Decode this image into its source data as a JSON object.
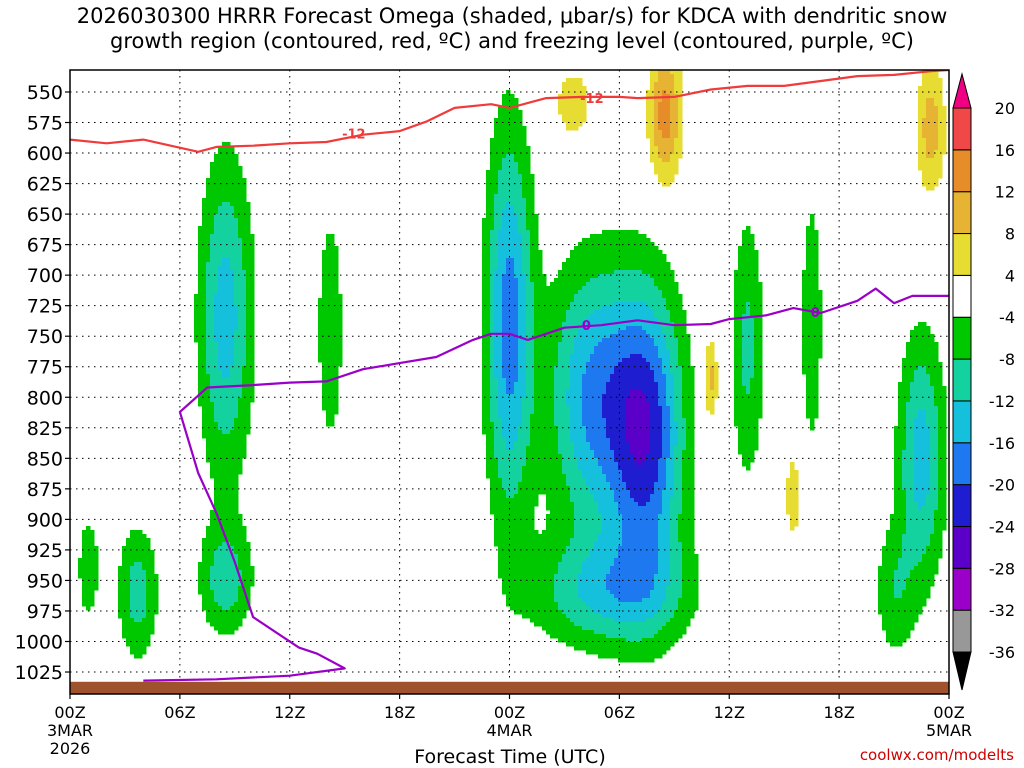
{
  "chart_data": {
    "type": "heatmap",
    "title": "2026030300 HRRR Forecast Omega (shaded, μbar/s) for KDCA with dendritic snow\ngrowth region (contoured, red, ºC) and freezing level (contoured, purple, ºC)",
    "xlabel": "Forecast Time (UTC)",
    "credit": "coolwx.com/modelts",
    "x_ticks": [
      {
        "hour": 0,
        "label": "00Z",
        "sub1": "3MAR",
        "sub2": "2026"
      },
      {
        "hour": 6,
        "label": "06Z",
        "sub1": "",
        "sub2": ""
      },
      {
        "hour": 12,
        "label": "12Z",
        "sub1": "",
        "sub2": ""
      },
      {
        "hour": 18,
        "label": "18Z",
        "sub1": "",
        "sub2": ""
      },
      {
        "hour": 24,
        "label": "00Z",
        "sub1": "4MAR",
        "sub2": ""
      },
      {
        "hour": 30,
        "label": "06Z",
        "sub1": "",
        "sub2": ""
      },
      {
        "hour": 36,
        "label": "12Z",
        "sub1": "",
        "sub2": ""
      },
      {
        "hour": 42,
        "label": "18Z",
        "sub1": "",
        "sub2": ""
      },
      {
        "hour": 48,
        "label": "00Z",
        "sub1": "5MAR",
        "sub2": ""
      }
    ],
    "xlim": [
      0,
      48
    ],
    "ylim": [
      1043,
      532
    ],
    "y_ticks": [
      550,
      575,
      600,
      625,
      650,
      675,
      700,
      725,
      750,
      775,
      800,
      825,
      850,
      875,
      900,
      925,
      950,
      975,
      1000,
      1025
    ],
    "colorbar": {
      "levels": [
        -36,
        -32,
        -28,
        -24,
        -20,
        -16,
        -12,
        -8,
        -4,
        4,
        8,
        12,
        16,
        20
      ],
      "labels": [
        "-36",
        "-32",
        "-28",
        "-24",
        "-20",
        "-16",
        "-12",
        "-8",
        "-4",
        "4",
        "8",
        "12",
        "16",
        "20"
      ],
      "colors": [
        "#989898",
        "#9a00c8",
        "#5a00c8",
        "#1e1ed0",
        "#1e78f0",
        "#14c0dc",
        "#14d2a0",
        "#00c800",
        "#ffffff",
        "#e6dc32",
        "#e6b432",
        "#e68c28",
        "#f04848"
      ],
      "under_color": "#000000",
      "over_color": "#f00082"
    },
    "omega_features": [
      {
        "hour": 8.5,
        "center_p": 735,
        "half_width_h": 1.6,
        "half_depth_p": 140,
        "peak": -14
      },
      {
        "hour": 8.5,
        "center_p": 950,
        "half_width_h": 1.6,
        "half_depth_p": 50,
        "peak": -10
      },
      {
        "hour": 3.7,
        "center_p": 960,
        "half_width_h": 1.2,
        "half_depth_p": 60,
        "peak": -10
      },
      {
        "hour": 1.0,
        "center_p": 940,
        "half_width_h": 0.8,
        "half_depth_p": 60,
        "peak": -6
      },
      {
        "hour": 14.2,
        "center_p": 745,
        "half_width_h": 1.0,
        "half_depth_p": 140,
        "peak": -6
      },
      {
        "hour": 24.0,
        "center_p": 740,
        "half_width_h": 1.4,
        "half_depth_p": 170,
        "peak": -18
      },
      {
        "hour": 28.5,
        "center_p": 800,
        "half_width_h": 2.6,
        "half_depth_p": 120,
        "peak": -16
      },
      {
        "hour": 31.5,
        "center_p": 830,
        "half_width_h": 2.2,
        "half_depth_p": 130,
        "peak": -22
      },
      {
        "hour": 29.5,
        "center_p": 960,
        "half_width_h": 4.6,
        "half_depth_p": 50,
        "peak": -12
      },
      {
        "hour": 37.0,
        "center_p": 760,
        "half_width_h": 1.0,
        "half_depth_p": 120,
        "peak": -9
      },
      {
        "hour": 40.5,
        "center_p": 740,
        "half_width_h": 0.7,
        "half_depth_p": 130,
        "peak": -7
      },
      {
        "hour": 46.5,
        "center_p": 850,
        "half_width_h": 1.4,
        "half_depth_p": 110,
        "peak": -14
      },
      {
        "hour": 45.0,
        "center_p": 960,
        "half_width_h": 1.2,
        "half_depth_p": 60,
        "peak": -7
      },
      {
        "hour": 32.5,
        "center_p": 570,
        "half_width_h": 1.0,
        "half_depth_p": 60,
        "peak": 14
      },
      {
        "hour": 47.0,
        "center_p": 580,
        "half_width_h": 0.9,
        "half_depth_p": 60,
        "peak": 10
      },
      {
        "hour": 27.5,
        "center_p": 560,
        "half_width_h": 1.4,
        "half_depth_p": 40,
        "peak": 6
      },
      {
        "hour": 35.0,
        "center_p": 785,
        "half_width_h": 0.4,
        "half_depth_p": 40,
        "peak": 10
      },
      {
        "hour": 39.5,
        "center_p": 880,
        "half_width_h": 0.6,
        "half_depth_p": 50,
        "peak": 6
      }
    ],
    "dendritic_contour": {
      "label": "-12",
      "color": "#ef3b3b",
      "points": [
        [
          0,
          589
        ],
        [
          2,
          592
        ],
        [
          4,
          589
        ],
        [
          7,
          599
        ],
        [
          8,
          595
        ],
        [
          10,
          594
        ],
        [
          12,
          592
        ],
        [
          14,
          591
        ],
        [
          16,
          585
        ],
        [
          18,
          582
        ],
        [
          19.5,
          574
        ],
        [
          21,
          563
        ],
        [
          23,
          560
        ],
        [
          24,
          563
        ],
        [
          26,
          555
        ],
        [
          28,
          554
        ],
        [
          30,
          554
        ],
        [
          31,
          555
        ],
        [
          33,
          554
        ],
        [
          35,
          548
        ],
        [
          37,
          545
        ],
        [
          39,
          545
        ],
        [
          41,
          541
        ],
        [
          43,
          537
        ],
        [
          45,
          536
        ],
        [
          47,
          533
        ],
        [
          48,
          532
        ]
      ],
      "label_positions": [
        [
          15.5,
          584
        ],
        [
          28.5,
          555
        ]
      ]
    },
    "freezing_contour": {
      "label": "0",
      "color": "#9a00c8",
      "points": [
        [
          4,
          1032
        ],
        [
          8,
          1031
        ],
        [
          12,
          1028
        ],
        [
          15,
          1022
        ],
        [
          13.5,
          1010
        ],
        [
          12.5,
          1005
        ],
        [
          10,
          980
        ],
        [
          9,
          935
        ],
        [
          8,
          895
        ],
        [
          7,
          862
        ],
        [
          6,
          812
        ],
        [
          7.5,
          792
        ],
        [
          10,
          790
        ],
        [
          12,
          788
        ],
        [
          14,
          787
        ],
        [
          16,
          777
        ],
        [
          18,
          772
        ],
        [
          20,
          767
        ],
        [
          22,
          753
        ],
        [
          23,
          748
        ],
        [
          24,
          748
        ],
        [
          25,
          753
        ],
        [
          27,
          743
        ],
        [
          29,
          741
        ],
        [
          31,
          737
        ],
        [
          33,
          741
        ],
        [
          35,
          740
        ],
        [
          36,
          736
        ],
        [
          38,
          733
        ],
        [
          39.5,
          727
        ],
        [
          41,
          731
        ],
        [
          43,
          721
        ],
        [
          44,
          711
        ],
        [
          45,
          723
        ],
        [
          46,
          717
        ],
        [
          48,
          717
        ]
      ],
      "label_positions": [
        [
          28.2,
          741
        ],
        [
          40.7,
          730
        ]
      ]
    },
    "terrain_pressure": 1033
  }
}
